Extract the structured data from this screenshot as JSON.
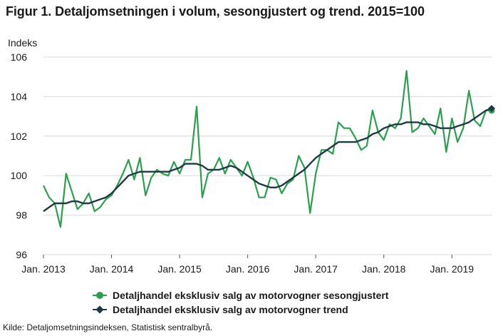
{
  "title": "Figur 1. Detaljomsetningen i volum, sesongjustert og trend. 2015=100",
  "source": "Kilde: Detaljomsetningsindeksen, Statistisk sentralbyrå.",
  "colors": {
    "seasonal": "#2aa04f",
    "trend": "#1e3b44",
    "grid": "#d9d9d9"
  },
  "chart_data": {
    "type": "line",
    "ylabel": "Indeks",
    "ylim": [
      96,
      106
    ],
    "yticks": [
      96,
      98,
      100,
      102,
      104,
      106
    ],
    "xticks": [
      {
        "label": "Jan. 2013",
        "x": 0
      },
      {
        "label": "Jan. 2014",
        "x": 12
      },
      {
        "label": "Jan. 2015",
        "x": 24
      },
      {
        "label": "Jan. 2016",
        "x": 36
      },
      {
        "label": "Jan. 2017",
        "x": 48
      },
      {
        "label": "Jan. 2018",
        "x": 60
      },
      {
        "label": "Jan. 2019",
        "x": 72
      }
    ],
    "x_range": [
      0,
      79
    ],
    "x_unit": "months from Jan. 2013",
    "grid": "horizontal",
    "legend_position": "bottom",
    "series": [
      {
        "name": "Detaljhandel eksklusiv salg av motorvogner sesongjustert",
        "color": "#2aa04f",
        "marker": "circle",
        "values": [
          99.5,
          98.9,
          98.6,
          97.4,
          100.1,
          99.2,
          98.3,
          98.6,
          99.1,
          98.2,
          98.4,
          98.8,
          99.0,
          99.5,
          100.1,
          100.8,
          99.8,
          100.9,
          99.0,
          99.9,
          100.3,
          100.1,
          100.0,
          100.7,
          100.1,
          100.8,
          100.8,
          103.5,
          98.9,
          100.1,
          100.3,
          100.9,
          100.1,
          100.8,
          100.4,
          100.0,
          100.7,
          99.9,
          98.9,
          98.9,
          99.9,
          99.8,
          99.1,
          99.6,
          99.8,
          101.0,
          100.4,
          98.1,
          100.1,
          101.3,
          101.3,
          101.1,
          102.7,
          102.4,
          102.4,
          101.9,
          101.3,
          101.5,
          103.3,
          102.2,
          101.8,
          102.6,
          102.4,
          102.9,
          105.3,
          102.2,
          102.4,
          102.9,
          102.5,
          102.1,
          103.4,
          101.2,
          102.9,
          101.7,
          102.4,
          104.3,
          102.8,
          102.5,
          103.3,
          103.3
        ]
      },
      {
        "name": "Detaljhandel eksklusiv salg av motorvogner trend",
        "color": "#1e3b44",
        "marker": "diamond",
        "values": [
          98.2,
          98.4,
          98.6,
          98.6,
          98.6,
          98.7,
          98.7,
          98.6,
          98.6,
          98.7,
          98.8,
          98.9,
          99.1,
          99.4,
          99.7,
          100.0,
          100.1,
          100.2,
          100.2,
          100.2,
          100.2,
          100.2,
          100.2,
          100.3,
          100.4,
          100.6,
          100.6,
          100.6,
          100.5,
          100.3,
          100.3,
          100.3,
          100.4,
          100.5,
          100.4,
          100.2,
          100.0,
          99.8,
          99.6,
          99.5,
          99.4,
          99.4,
          99.5,
          99.7,
          99.9,
          100.1,
          100.3,
          100.6,
          100.9,
          101.1,
          101.3,
          101.5,
          101.7,
          101.7,
          101.7,
          101.7,
          101.8,
          101.9,
          102.1,
          102.2,
          102.4,
          102.5,
          102.6,
          102.6,
          102.7,
          102.7,
          102.7,
          102.6,
          102.6,
          102.5,
          102.4,
          102.4,
          102.4,
          102.5,
          102.6,
          102.7,
          102.9,
          103.1,
          103.3,
          103.4
        ]
      }
    ]
  }
}
